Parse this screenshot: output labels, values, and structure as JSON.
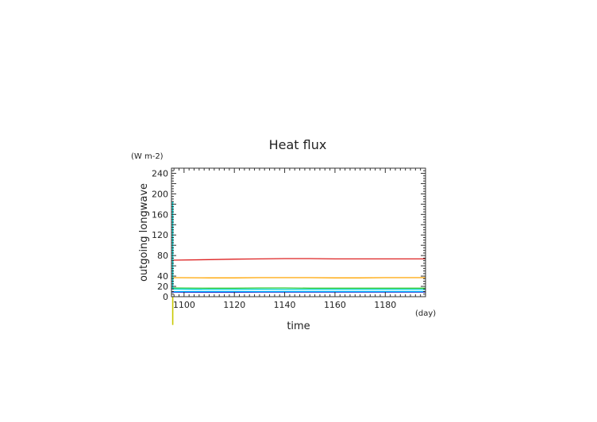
{
  "chart_data": {
    "type": "line",
    "title": "Heat flux",
    "xlabel": "time",
    "ylabel": "outgoing longwave",
    "x_unit": "(day)",
    "y_unit": "(W m-2)",
    "xlim": [
      1095,
      1196
    ],
    "ylim": [
      0,
      250
    ],
    "xticks": [
      1100,
      1120,
      1140,
      1160,
      1180
    ],
    "yticks": [
      0,
      20,
      40,
      80,
      120,
      160,
      200,
      240
    ],
    "grid": false,
    "series": [
      {
        "color": "#dd2222",
        "x": [
          1095,
          1110,
          1120,
          1130,
          1140,
          1150,
          1160,
          1170,
          1180,
          1196
        ],
        "values": [
          71,
          72,
          73,
          73.5,
          74,
          74,
          73.5,
          73.5,
          73.5,
          73.5
        ]
      },
      {
        "color": "#ffa500",
        "x": [
          1095,
          1110,
          1120,
          1130,
          1140,
          1150,
          1160,
          1170,
          1180,
          1196
        ],
        "values": [
          37,
          36.5,
          36.5,
          37,
          37,
          37,
          36.5,
          36.5,
          37,
          37
        ]
      },
      {
        "color": "#33cc33",
        "x": [
          1095,
          1110,
          1120,
          1130,
          1140,
          1150,
          1160,
          1170,
          1180,
          1196
        ],
        "values": [
          17,
          16.5,
          16.5,
          17,
          17,
          16.5,
          16.5,
          16.5,
          16.5,
          16.5
        ]
      },
      {
        "color": "#00d4d4",
        "x": [
          1095,
          1110,
          1120,
          1130,
          1140,
          1150,
          1160,
          1170,
          1180,
          1196
        ],
        "values": [
          15,
          14,
          14,
          14.5,
          14,
          14,
          14,
          14,
          14,
          14
        ]
      },
      {
        "color": "#2222cc",
        "x": [
          1095,
          1110,
          1120,
          1130,
          1140,
          1150,
          1160,
          1170,
          1180,
          1196
        ],
        "values": [
          9,
          8.5,
          8.5,
          9,
          9,
          9,
          9,
          9,
          9,
          9
        ]
      },
      {
        "color": "#00bbff",
        "x": [
          1095,
          1110,
          1120,
          1130,
          1140,
          1150,
          1160,
          1170,
          1180,
          1196
        ],
        "values": [
          10,
          10,
          10,
          10,
          10,
          10,
          10,
          10,
          10,
          10
        ]
      }
    ],
    "spikes": [
      {
        "color": "#c8c800",
        "x": 1095.5,
        "values": [
          0,
          -55
        ]
      },
      {
        "color": "#00d4d4",
        "x": 1095.5,
        "values": [
          15,
          185
        ]
      }
    ]
  }
}
